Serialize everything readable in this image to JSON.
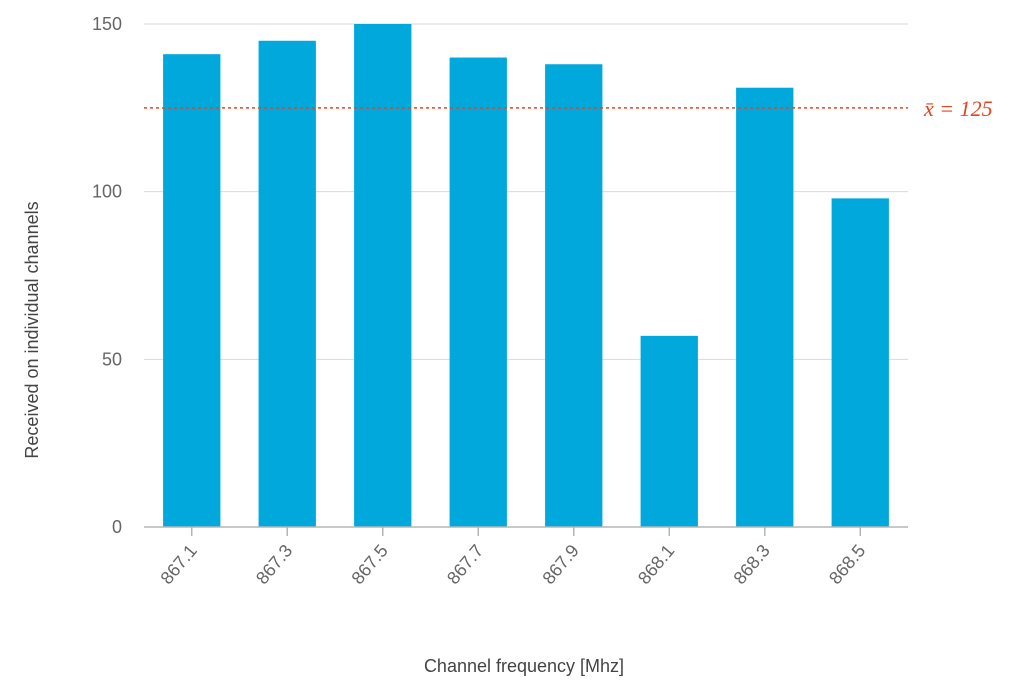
{
  "chart_data": {
    "type": "bar",
    "categories": [
      "867.1",
      "867.3",
      "867.5",
      "867.7",
      "867.9",
      "868.1",
      "868.3",
      "868.5"
    ],
    "values": [
      141,
      145,
      150,
      140,
      138,
      57,
      131,
      98
    ],
    "xlabel": "Channel frequency [Mhz]",
    "ylabel": "Received on individual channels",
    "ylim": [
      0,
      150
    ],
    "yticks": [
      0,
      50,
      100,
      150
    ],
    "grid": true,
    "legend": "none",
    "bar_color": "#00a8dc",
    "mean_line": {
      "value": 125,
      "label": "x̄ = 125",
      "color": "#e8431e",
      "style": "dotted"
    }
  }
}
